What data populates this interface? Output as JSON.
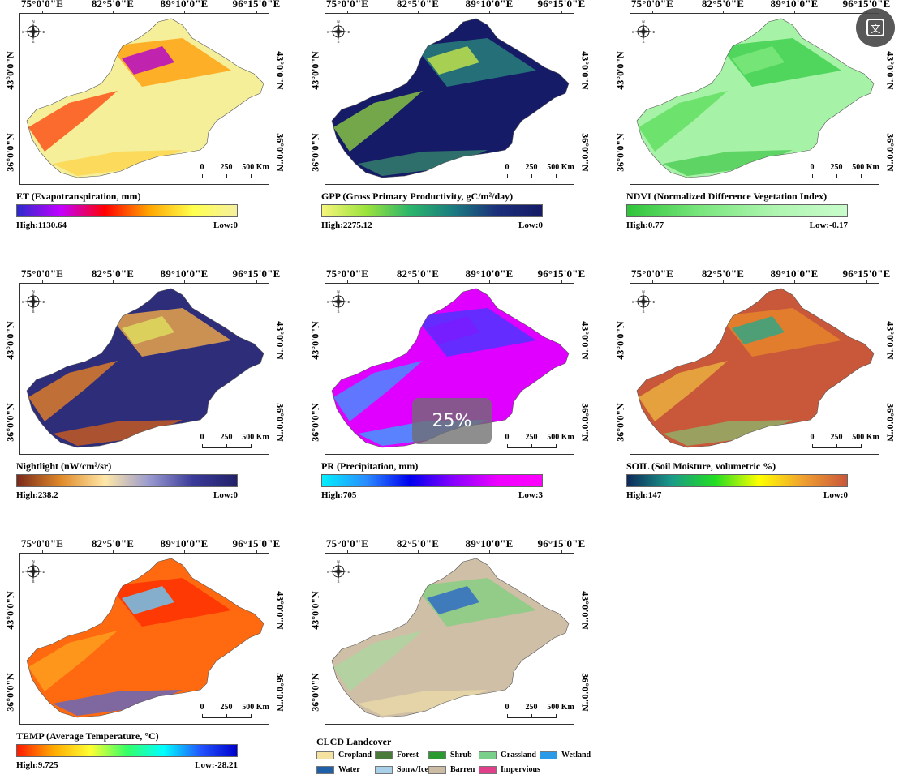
{
  "axis_labels": {
    "lon": [
      "75°0'0\"E",
      "82°5'0\"E",
      "89°10'0\"E",
      "96°15'0\"E"
    ],
    "lat": [
      "43°0'0\"N",
      "36°0'0\"N"
    ]
  },
  "compass": {
    "n": "N",
    "s": "S",
    "e": "E",
    "w": "W"
  },
  "scalebar": {
    "zero": "0",
    "mid": "250",
    "end": "500 Km"
  },
  "panels": [
    {
      "title": "ET (Evapotranspiration, mm)",
      "high": "High:1130.64",
      "low": "Low:0",
      "gradient": [
        "#2b2bcc",
        "#c300ff",
        "#ff0000",
        "#ffa500",
        "#ffff4d",
        "#f4f0a0"
      ],
      "map_base": "#f5ef9a",
      "map_accents": [
        "#ff9900",
        "#ff3300",
        "#b000d0",
        "#ffcc33"
      ]
    },
    {
      "title": "GPP (Gross Primary Productivity, gC/m²/day)",
      "high": "High:2275.12",
      "low": "Low:0",
      "gradient": [
        "#f5f57a",
        "#9be33d",
        "#2ab56a",
        "#1a7a80",
        "#1b2e7a",
        "#151b66"
      ],
      "map_base": "#151b66",
      "map_accents": [
        "#2a8c7f",
        "#9be33d",
        "#c8e84a",
        "#3fa86e"
      ]
    },
    {
      "title": "NDVI (Normalized Difference Vegetation Index)",
      "high": "High:0.77",
      "low": "Low:-0.17",
      "gradient": [
        "#2fc43a",
        "#7ae67e",
        "#aef5b0",
        "#c9fccb"
      ],
      "map_base": "#a6f2a6",
      "map_accents": [
        "#33cc44",
        "#55dd55",
        "#7fe87f",
        "#2ec03a"
      ]
    },
    {
      "title": "Nightlight (nW/cm²/sr)",
      "high": "High:238.2",
      "low": "Low:0",
      "gradient": [
        "#7a2a1a",
        "#e08a2a",
        "#ffe8a8",
        "#9a9ad0",
        "#3a3a9a",
        "#22226a"
      ],
      "map_base": "#2d2d7a",
      "map_accents": [
        "#ffb347",
        "#ff8c1a",
        "#e0e060",
        "#ff6a00"
      ]
    },
    {
      "title": "PR (Precipitation, mm)",
      "high": "High:705",
      "low": "Low:3",
      "gradient": [
        "#00f0ff",
        "#2a8cff",
        "#0000ee",
        "#8a00ff",
        "#ee00ff",
        "#ff00ff"
      ],
      "map_base": "#e000ff",
      "map_accents": [
        "#3b3bff",
        "#2aa8ff",
        "#7a1bff",
        "#00d8ff"
      ]
    },
    {
      "title": "SOIL (Soil Moisture, volumetric %)",
      "high": "High:147",
      "low": "Low:0",
      "gradient": [
        "#0d2a5a",
        "#1a9a8a",
        "#22dd22",
        "#ffff00",
        "#f0a030",
        "#c9573a"
      ],
      "map_base": "#c9573a",
      "map_accents": [
        "#e88a2a",
        "#f0c040",
        "#2aa888",
        "#7ad07a"
      ]
    },
    {
      "title": "TEMP (Average Temperature, °C)",
      "high": "High:9.725",
      "low": "Low:-28.21",
      "gradient": [
        "#ff1a00",
        "#ffaa00",
        "#ffff33",
        "#33ff66",
        "#00ffff",
        "#2255ff",
        "#0000cc"
      ],
      "map_base": "#ff6a10",
      "map_accents": [
        "#ff2a00",
        "#ffaa22",
        "#66ccff",
        "#2a66ff"
      ]
    },
    {
      "title": "",
      "high": "",
      "low": "",
      "gradient": [],
      "map_base": "#cfbfa6",
      "map_accents": [
        "#7fcf7f",
        "#a8d8a0",
        "#2a66c8",
        "#f2e2a8"
      ]
    }
  ],
  "landcover": {
    "title": "CLCD Landcover",
    "items": [
      {
        "label": "Cropland",
        "color": "#f5e2a0"
      },
      {
        "label": "Forest",
        "color": "#4a7a3a"
      },
      {
        "label": "Shrub",
        "color": "#2a9a30"
      },
      {
        "label": "Grassland",
        "color": "#7ad08a"
      },
      {
        "label": "Wetland",
        "color": "#2a9ae8"
      },
      {
        "label": "Water",
        "color": "#1f5fa8"
      },
      {
        "label": "Sonw/Ice",
        "color": "#a8d0e8"
      },
      {
        "label": "Barren",
        "color": "#cdbca4"
      },
      {
        "label": "Impervious",
        "color": "#e0408a"
      }
    ]
  },
  "overlay": {
    "zoom_text": "25%",
    "translate_glyph": "文"
  }
}
